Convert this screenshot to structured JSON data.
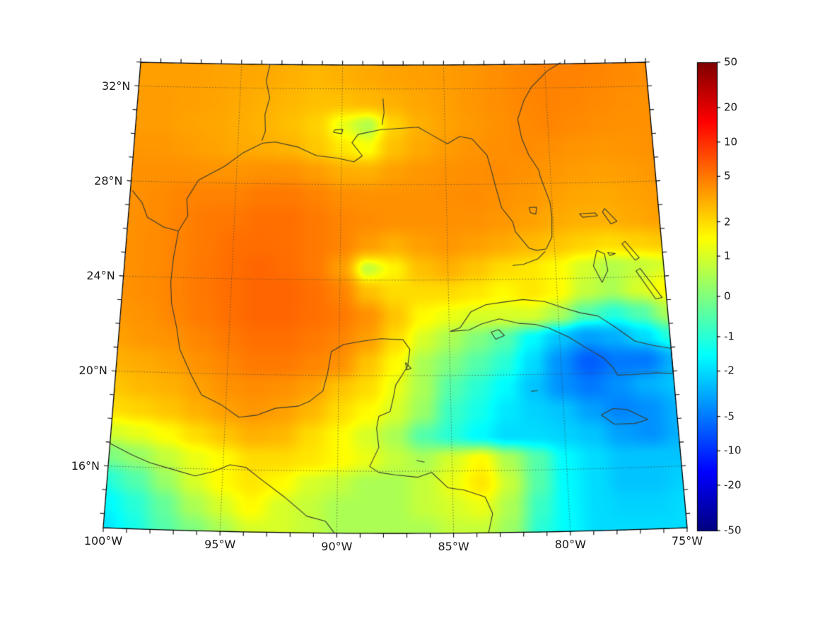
{
  "figure": {
    "background": "#ffffff"
  },
  "map": {
    "lat_ticks": [
      {
        "label": "32°N",
        "value": 32
      },
      {
        "label": "28°N",
        "value": 28
      },
      {
        "label": "24°N",
        "value": 24
      },
      {
        "label": "20°N",
        "value": 20
      },
      {
        "label": "16°N",
        "value": 16
      }
    ],
    "lon_ticks": [
      {
        "label": "100°W",
        "value": -100
      },
      {
        "label": "95°W",
        "value": -95
      },
      {
        "label": "90°W",
        "value": -90
      },
      {
        "label": "85°W",
        "value": -85
      },
      {
        "label": "80°W",
        "value": -80
      },
      {
        "label": "75°W",
        "value": -75
      }
    ]
  },
  "colorbar": {
    "ticks": [
      {
        "label": "50",
        "value": 50
      },
      {
        "label": "20",
        "value": 20
      },
      {
        "label": "10",
        "value": 10
      },
      {
        "label": "5",
        "value": 5
      },
      {
        "label": "2",
        "value": 2
      },
      {
        "label": "1",
        "value": 1
      },
      {
        "label": "0",
        "value": 0
      },
      {
        "label": "-1",
        "value": -1
      },
      {
        "label": "-2",
        "value": -2
      },
      {
        "label": "-5",
        "value": -5
      },
      {
        "label": "-10",
        "value": -10
      },
      {
        "label": "-20",
        "value": -20
      },
      {
        "label": "-50",
        "value": -50
      }
    ],
    "vmin": -50,
    "vmax": 50,
    "scale": "symlog",
    "colormap": "jet"
  },
  "chart_data": {
    "type": "heatmap",
    "title": "",
    "region": "Gulf of Mexico / Caribbean",
    "projection": "conic",
    "lon_range": [
      -100,
      -75
    ],
    "lat_range": [
      13.4,
      33.0
    ],
    "graticule": {
      "lats": [
        32,
        28,
        24,
        20,
        16
      ],
      "lons": [
        -95,
        -90,
        -85,
        -80
      ],
      "style": "dotted"
    },
    "colormap": "jet",
    "scale": "symlog",
    "colorbar_ticks": [
      50,
      20,
      10,
      5,
      2,
      1,
      0,
      -1,
      -2,
      -5,
      -10,
      -20,
      -50
    ],
    "grid_lons": [
      -100,
      -98.75,
      -97.5,
      -96.25,
      -95,
      -93.75,
      -92.5,
      -91.25,
      -90,
      -88.75,
      -87.5,
      -86.25,
      -85,
      -83.75,
      -82.5,
      -81.25,
      -80,
      -78.75,
      -77.5,
      -76.25,
      -75
    ],
    "grid_lats": [
      33.5,
      32.5,
      31.5,
      30.5,
      29.5,
      28.5,
      27.5,
      26.5,
      25.5,
      24.5,
      23.5,
      22.5,
      21.5,
      20.5,
      19.5,
      18.5,
      17.5,
      16.5,
      15.5,
      14.5,
      13.5
    ],
    "values": [
      [
        3.5,
        3.5,
        3.5,
        3.4,
        3.4,
        3.3,
        3.1,
        3.0,
        3.0,
        3.2,
        3.4,
        3.5,
        3.5,
        3.8,
        4.0,
        4.2,
        4.5,
        4.6,
        4.5,
        4.3,
        4.1
      ],
      [
        3.5,
        3.5,
        3.5,
        3.4,
        3.3,
        3.2,
        3.0,
        2.8,
        3.0,
        3.2,
        3.4,
        3.5,
        3.6,
        3.8,
        4.1,
        4.4,
        4.6,
        4.6,
        4.5,
        4.3,
        4.1
      ],
      [
        3.6,
        3.6,
        3.5,
        3.4,
        3.2,
        3.0,
        2.8,
        2.6,
        2.6,
        2.8,
        3.0,
        3.3,
        3.5,
        3.8,
        4.1,
        4.4,
        4.6,
        4.5,
        4.3,
        4.1,
        4.0
      ],
      [
        3.6,
        3.6,
        3.4,
        3.3,
        3.1,
        2.9,
        2.6,
        2.2,
        1.2,
        0.6,
        2.2,
        3.0,
        3.4,
        3.7,
        4.0,
        4.3,
        4.5,
        4.3,
        4.1,
        4.0,
        4.0
      ],
      [
        3.8,
        3.8,
        3.6,
        3.4,
        3.2,
        3.1,
        2.9,
        2.4,
        1.8,
        1.4,
        2.6,
        3.2,
        3.6,
        3.9,
        4.1,
        4.2,
        4.1,
        3.9,
        3.8,
        3.9,
        4.0
      ],
      [
        4.0,
        4.0,
        4.0,
        3.9,
        3.9,
        4.0,
        4.0,
        3.6,
        3.1,
        3.0,
        3.5,
        3.8,
        4.0,
        4.1,
        4.2,
        4.0,
        3.8,
        3.6,
        3.5,
        3.6,
        3.8
      ],
      [
        4.0,
        4.2,
        4.5,
        4.6,
        4.6,
        5.0,
        5.0,
        4.6,
        4.1,
        4.0,
        4.0,
        4.0,
        4.1,
        4.2,
        4.0,
        3.8,
        3.5,
        3.3,
        3.2,
        3.4,
        3.6
      ],
      [
        4.0,
        4.2,
        4.6,
        5.0,
        5.1,
        5.5,
        5.5,
        5.0,
        4.5,
        4.2,
        4.0,
        4.0,
        4.0,
        4.0,
        3.8,
        3.5,
        3.2,
        3.0,
        3.0,
        3.2,
        3.5
      ],
      [
        4.0,
        4.2,
        4.6,
        5.0,
        5.5,
        5.6,
        5.5,
        5.0,
        4.5,
        3.6,
        3.0,
        3.5,
        3.8,
        3.5,
        3.2,
        2.8,
        2.5,
        2.2,
        2.0,
        2.2,
        2.4
      ],
      [
        4.0,
        4.2,
        4.6,
        5.1,
        5.6,
        6.0,
        5.6,
        5.0,
        3.6,
        0.8,
        1.6,
        2.6,
        3.0,
        2.5,
        2.0,
        1.8,
        1.5,
        1.0,
        0.6,
        0.8,
        1.0
      ],
      [
        4.0,
        4.2,
        4.6,
        5.1,
        5.6,
        6.0,
        6.0,
        5.5,
        4.6,
        2.6,
        2.0,
        2.0,
        2.0,
        1.8,
        1.5,
        1.8,
        1.5,
        0.8,
        0.5,
        1.0,
        1.5
      ],
      [
        3.8,
        4.0,
        4.5,
        5.0,
        5.5,
        6.0,
        6.0,
        5.5,
        5.0,
        4.0,
        2.5,
        1.5,
        1.2,
        1.0,
        1.0,
        1.0,
        0.5,
        -0.5,
        -1.0,
        -0.5,
        0.5
      ],
      [
        3.5,
        3.8,
        4.0,
        4.5,
        5.0,
        5.5,
        5.5,
        5.0,
        4.5,
        3.5,
        2.0,
        1.0,
        0.5,
        0.0,
        -0.5,
        -1.5,
        -2.5,
        -3.5,
        -3.0,
        -2.0,
        -1.0
      ],
      [
        3.0,
        3.2,
        3.5,
        4.0,
        4.5,
        5.0,
        5.0,
        4.5,
        4.0,
        2.5,
        1.5,
        0.5,
        0.0,
        -0.5,
        -1.0,
        -2.0,
        -4.0,
        -6.5,
        -5.0,
        -5.0,
        -3.0
      ],
      [
        2.5,
        2.8,
        3.0,
        3.5,
        4.0,
        4.2,
        4.0,
        3.5,
        2.5,
        2.0,
        1.2,
        0.5,
        -0.5,
        -1.0,
        -1.5,
        -2.5,
        -4.0,
        -5.0,
        -4.0,
        -3.0,
        -2.5
      ],
      [
        2.0,
        2.2,
        2.5,
        3.0,
        3.5,
        3.8,
        3.5,
        2.8,
        2.0,
        1.5,
        1.0,
        0.3,
        -0.8,
        -1.2,
        -1.8,
        -2.2,
        -2.5,
        -3.5,
        -4.5,
        -4.0,
        -3.0
      ],
      [
        1.0,
        1.2,
        1.5,
        2.0,
        2.5,
        3.0,
        2.8,
        2.0,
        1.5,
        1.0,
        0.5,
        -0.5,
        -1.0,
        -1.5,
        -2.0,
        -2.0,
        -2.2,
        -2.5,
        -3.5,
        -4.0,
        -3.0
      ],
      [
        0.0,
        0.3,
        0.8,
        1.2,
        1.5,
        2.0,
        2.0,
        1.8,
        1.5,
        1.2,
        0.8,
        0.5,
        1.0,
        1.5,
        0.5,
        -0.5,
        -1.5,
        -2.0,
        -2.5,
        -2.5,
        -2.5
      ],
      [
        -1.0,
        -0.5,
        0.3,
        1.0,
        1.5,
        1.8,
        1.5,
        1.0,
        0.8,
        0.5,
        0.5,
        0.8,
        1.2,
        1.8,
        0.8,
        -0.5,
        -1.5,
        -2.0,
        -2.5,
        -2.5,
        -2.2
      ],
      [
        -1.5,
        -1.0,
        -0.3,
        0.5,
        1.0,
        1.5,
        1.0,
        0.8,
        0.5,
        0.5,
        0.5,
        0.8,
        1.0,
        1.2,
        0.5,
        -0.8,
        -1.5,
        -2.0,
        -2.2,
        -2.2,
        -2.0
      ],
      [
        -1.8,
        -1.2,
        -0.5,
        0.0,
        0.5,
        1.0,
        1.0,
        0.8,
        0.5,
        0.5,
        0.5,
        0.5,
        0.8,
        0.8,
        0.3,
        -1.0,
        -1.5,
        -2.0,
        -2.0,
        -2.0,
        -2.0
      ]
    ]
  }
}
